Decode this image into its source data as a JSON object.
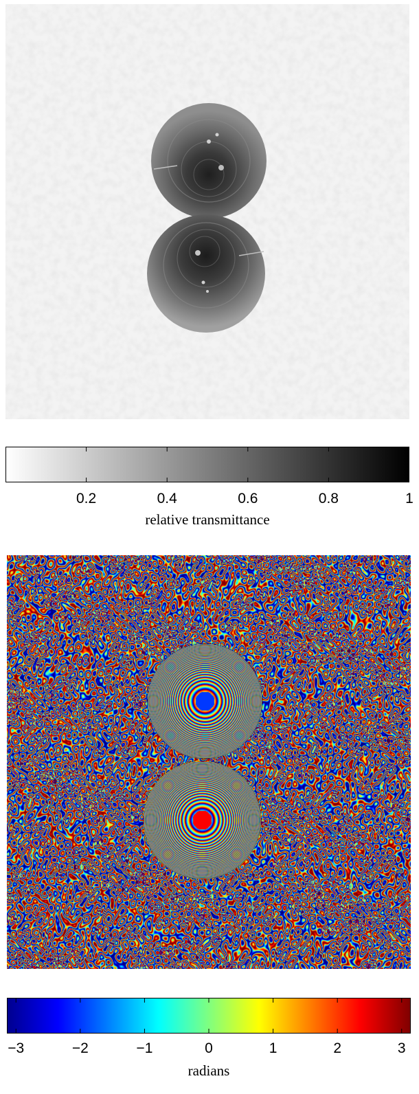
{
  "transmittance_panel": {
    "colorbar": {
      "label": "relative transmittance",
      "ticks": [
        "0.2",
        "0.4",
        "0.6",
        "0.8",
        "1"
      ],
      "tick_values": [
        0.2,
        0.4,
        0.6,
        0.8,
        1.0
      ],
      "range": [
        0,
        1
      ],
      "colors": [
        "#ffffff",
        "#000000"
      ]
    }
  },
  "phase_panel": {
    "colorbar": {
      "label": "radians",
      "ticks": [
        "−3",
        "−2",
        "−1",
        "0",
        "1",
        "2",
        "3"
      ],
      "tick_values": [
        -3,
        -2,
        -1,
        0,
        1,
        2,
        3
      ],
      "range": [
        -3.14159,
        3.14159
      ],
      "colors": [
        "#00008f",
        "#0000ff",
        "#00ffff",
        "#ffff00",
        "#ff0000",
        "#800000"
      ]
    }
  }
}
